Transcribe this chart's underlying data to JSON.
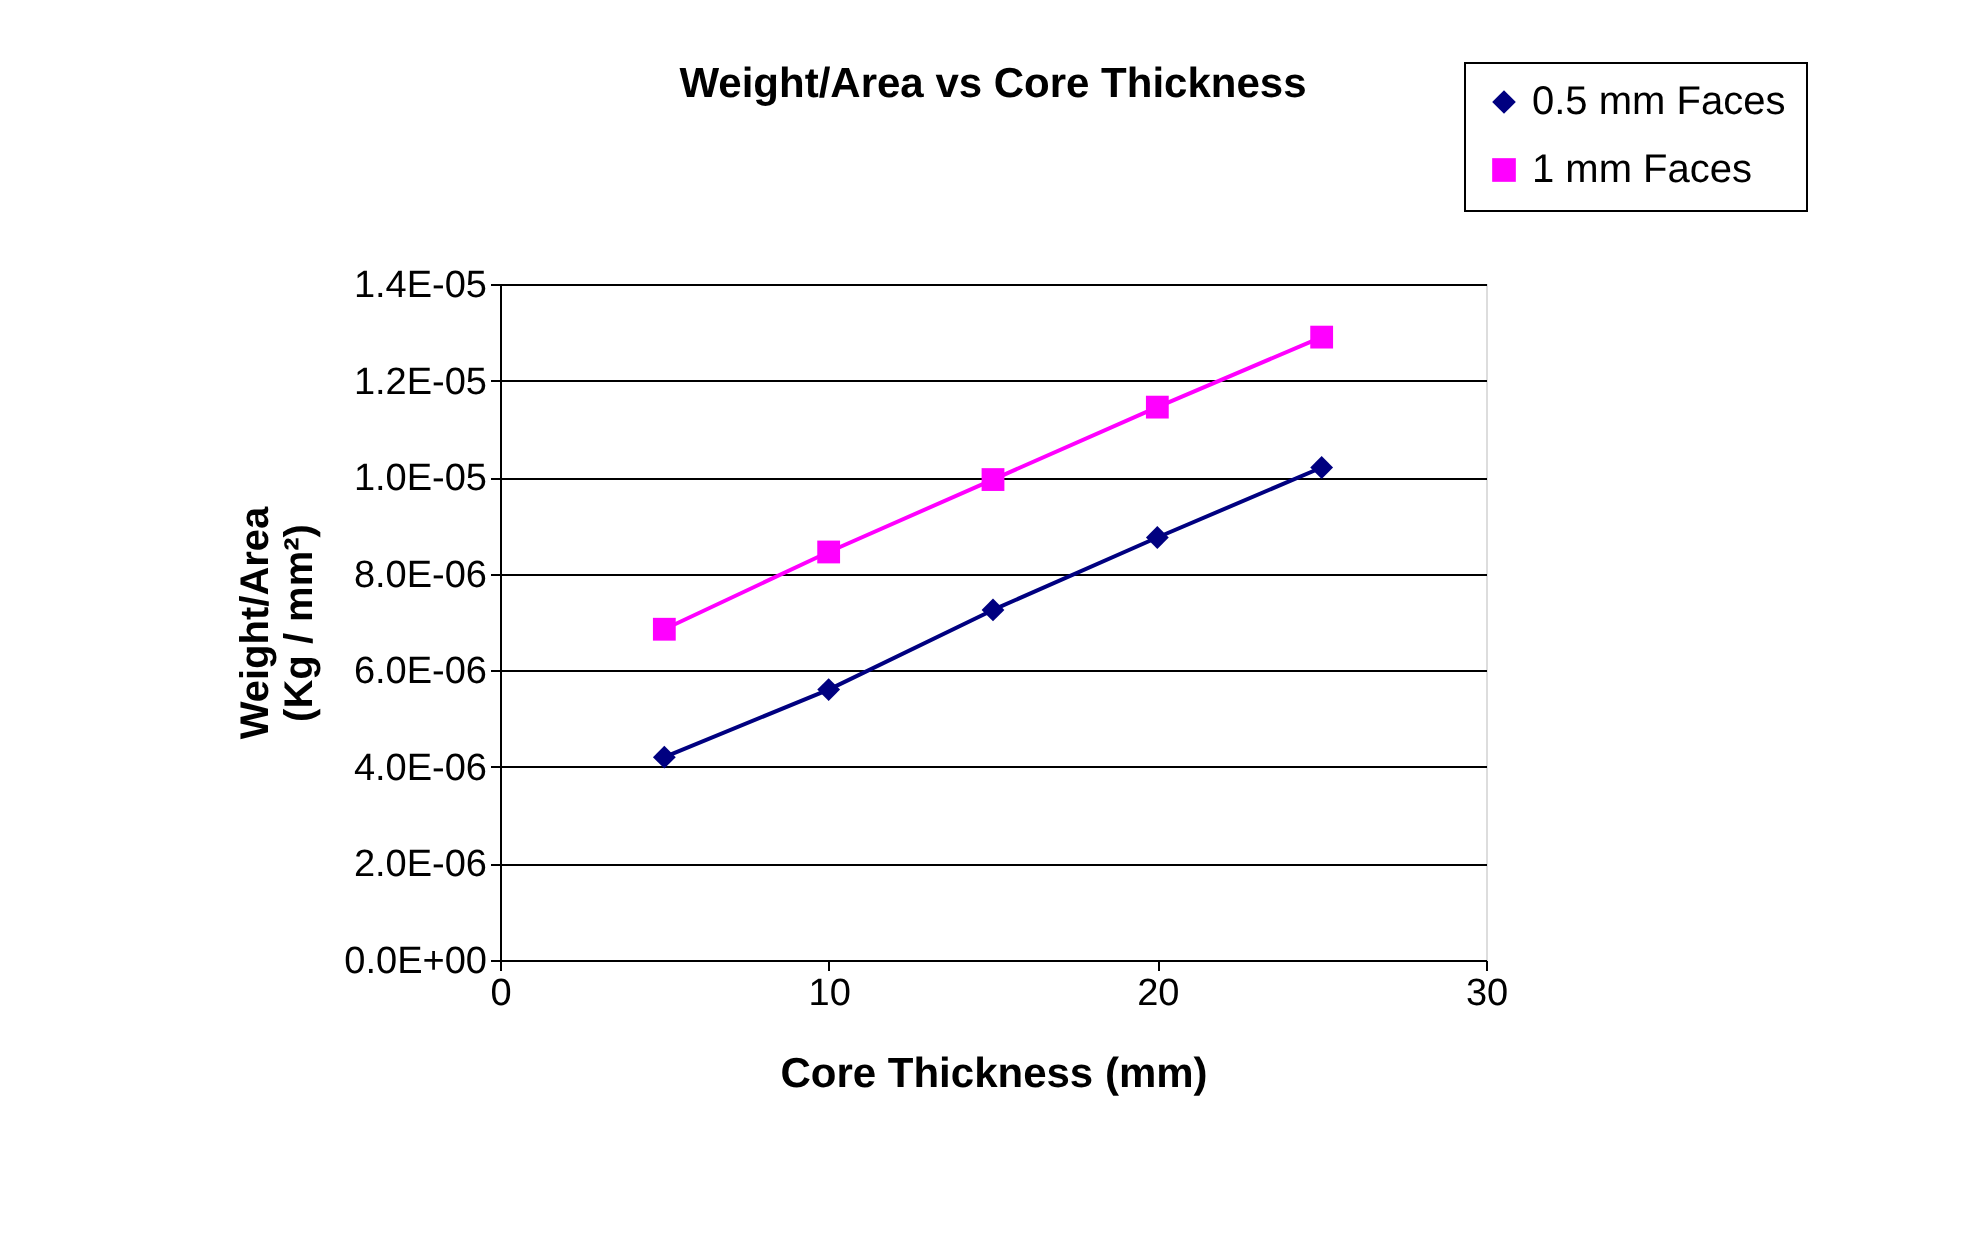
{
  "chart_data": {
    "type": "line",
    "title": "Weight/Area vs Core Thickness",
    "xlabel": "Core Thickness (mm)",
    "ylabel": "Weight/Area\n(Kg / mm²)",
    "x": [
      5,
      10,
      15,
      20,
      25
    ],
    "series": [
      {
        "name": "0.5 mm Faces",
        "color": "#000080",
        "marker": "diamond",
        "values": [
          4.2e-06,
          5.6e-06,
          7.25e-06,
          8.75e-06,
          1.02e-05
        ]
      },
      {
        "name": "1 mm Faces",
        "color": "#ff00ff",
        "marker": "square",
        "values": [
          6.85e-06,
          8.45e-06,
          9.95e-06,
          1.145e-05,
          1.29e-05
        ]
      }
    ],
    "xlim": [
      0,
      30
    ],
    "xticks": [
      0,
      10,
      20,
      30
    ],
    "ylim": [
      0,
      1.4e-05
    ],
    "yticks": [
      {
        "value": 0,
        "label": "0.0E+00"
      },
      {
        "value": 2e-06,
        "label": "2.0E-06"
      },
      {
        "value": 4e-06,
        "label": "4.0E-06"
      },
      {
        "value": 6e-06,
        "label": "6.0E-06"
      },
      {
        "value": 8e-06,
        "label": "8.0E-06"
      },
      {
        "value": 1e-05,
        "label": "1.0E-05"
      },
      {
        "value": 1.2e-05,
        "label": "1.2E-05"
      },
      {
        "value": 1.4e-05,
        "label": "1.4E-05"
      }
    ],
    "grid": "y",
    "legend": "top right",
    "line_style": "solid"
  }
}
